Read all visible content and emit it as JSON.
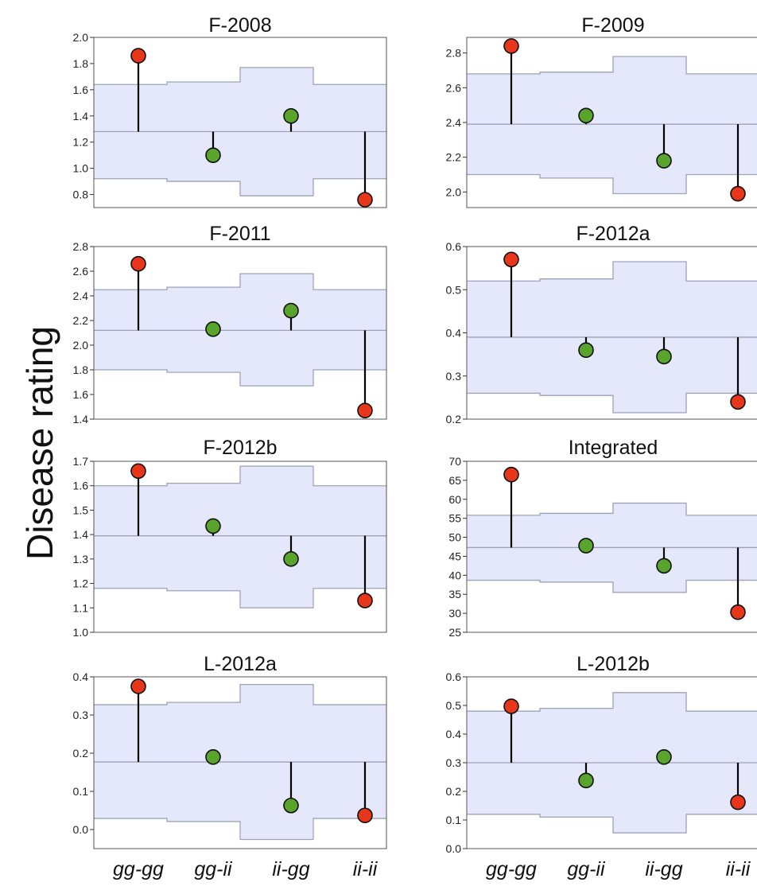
{
  "ylabel": "Disease rating",
  "x_categories": [
    "gg-gg",
    "gg-ii",
    "ii-gg",
    "ii-ii"
  ],
  "colors": {
    "red_marker": "#e8361a",
    "green_marker": "#58a42c",
    "band_fill": "#e5e8fa",
    "band_line": "#9ea2b7",
    "stem": "#000000"
  },
  "chart_data": [
    {
      "type": "scatter",
      "title": "F-2008",
      "categories": [
        "gg-gg",
        "gg-ii",
        "ii-gg",
        "ii-ii"
      ],
      "ylim": [
        0.7,
        2.0
      ],
      "yticks": [
        0.8,
        1.0,
        1.2,
        1.4,
        1.6,
        1.8,
        2.0
      ],
      "tick_labels": [
        "0.8",
        "1.0",
        "1.2",
        "1.4",
        "1.6",
        "1.8",
        "2.0"
      ],
      "mean": 1.28,
      "band_upper": [
        1.64,
        1.66,
        1.77,
        1.64
      ],
      "band_lower": [
        0.92,
        0.9,
        0.79,
        0.92
      ],
      "values": [
        1.86,
        1.1,
        1.4,
        0.76
      ],
      "marker_colors": [
        "red",
        "green",
        "green",
        "red"
      ]
    },
    {
      "type": "scatter",
      "title": "F-2009",
      "categories": [
        "gg-gg",
        "gg-ii",
        "ii-gg",
        "ii-ii"
      ],
      "ylim": [
        1.91,
        2.89
      ],
      "yticks": [
        2.0,
        2.2,
        2.4,
        2.6,
        2.8
      ],
      "tick_labels": [
        "2.0",
        "2.2",
        "2.4",
        "2.6",
        "2.8"
      ],
      "mean": 2.39,
      "band_upper": [
        2.68,
        2.69,
        2.78,
        2.68
      ],
      "band_lower": [
        2.1,
        2.08,
        1.99,
        2.1
      ],
      "values": [
        2.84,
        2.44,
        2.18,
        1.99
      ],
      "marker_colors": [
        "red",
        "green",
        "green",
        "red"
      ]
    },
    {
      "type": "scatter",
      "title": "F-2011",
      "categories": [
        "gg-gg",
        "gg-ii",
        "ii-gg",
        "ii-ii"
      ],
      "ylim": [
        1.4,
        2.8
      ],
      "yticks": [
        1.4,
        1.6,
        1.8,
        2.0,
        2.2,
        2.4,
        2.6,
        2.8
      ],
      "tick_labels": [
        "1.4",
        "1.6",
        "1.8",
        "2.0",
        "2.2",
        "2.4",
        "2.6",
        "2.8"
      ],
      "mean": 2.12,
      "band_upper": [
        2.45,
        2.47,
        2.58,
        2.45
      ],
      "band_lower": [
        1.8,
        1.78,
        1.67,
        1.8
      ],
      "values": [
        2.66,
        2.13,
        2.28,
        1.47
      ],
      "marker_colors": [
        "red",
        "green",
        "green",
        "red"
      ]
    },
    {
      "type": "scatter",
      "title": "F-2012a",
      "categories": [
        "gg-gg",
        "gg-ii",
        "ii-gg",
        "ii-ii"
      ],
      "ylim": [
        0.2,
        0.6
      ],
      "yticks": [
        0.2,
        0.3,
        0.4,
        0.5,
        0.6
      ],
      "tick_labels": [
        "0.2",
        "0.3",
        "0.4",
        "0.5",
        "0.6"
      ],
      "mean": 0.39,
      "band_upper": [
        0.52,
        0.525,
        0.565,
        0.52
      ],
      "band_lower": [
        0.26,
        0.255,
        0.215,
        0.26
      ],
      "values": [
        0.57,
        0.36,
        0.345,
        0.24
      ],
      "marker_colors": [
        "red",
        "green",
        "green",
        "red"
      ]
    },
    {
      "type": "scatter",
      "title": "F-2012b",
      "categories": [
        "gg-gg",
        "gg-ii",
        "ii-gg",
        "ii-ii"
      ],
      "ylim": [
        1.0,
        1.7
      ],
      "yticks": [
        1.0,
        1.1,
        1.2,
        1.3,
        1.4,
        1.5,
        1.6,
        1.7
      ],
      "tick_labels": [
        "1.0",
        "1.1",
        "1.2",
        "1.3",
        "1.4",
        "1.5",
        "1.6",
        "1.7"
      ],
      "mean": 1.395,
      "band_upper": [
        1.6,
        1.61,
        1.68,
        1.6
      ],
      "band_lower": [
        1.18,
        1.17,
        1.1,
        1.18
      ],
      "values": [
        1.66,
        1.435,
        1.3,
        1.13
      ],
      "marker_colors": [
        "red",
        "green",
        "green",
        "red"
      ]
    },
    {
      "type": "scatter",
      "title": "Integrated",
      "categories": [
        "gg-gg",
        "gg-ii",
        "ii-gg",
        "ii-ii"
      ],
      "ylim": [
        25,
        70
      ],
      "yticks": [
        25,
        30,
        35,
        40,
        45,
        50,
        55,
        60,
        65,
        70
      ],
      "tick_labels": [
        "25",
        "30",
        "35",
        "40",
        "45",
        "50",
        "55",
        "60",
        "65",
        "70"
      ],
      "mean": 47.3,
      "band_upper": [
        55.8,
        56.3,
        59.0,
        55.8
      ],
      "band_lower": [
        38.7,
        38.2,
        35.5,
        38.7
      ],
      "values": [
        66.5,
        47.8,
        42.5,
        30.3
      ],
      "marker_colors": [
        "red",
        "green",
        "green",
        "red"
      ]
    },
    {
      "type": "scatter",
      "title": "L-2012a",
      "categories": [
        "gg-gg",
        "gg-ii",
        "ii-gg",
        "ii-ii"
      ],
      "ylim": [
        -0.05,
        0.4
      ],
      "yticks": [
        0.0,
        0.1,
        0.2,
        0.3,
        0.4
      ],
      "tick_labels": [
        "0.0",
        "0.1",
        "0.2",
        "0.3",
        "0.4"
      ],
      "mean": 0.177,
      "band_upper": [
        0.327,
        0.333,
        0.38,
        0.327
      ],
      "band_lower": [
        0.029,
        0.021,
        -0.026,
        0.029
      ],
      "values": [
        0.375,
        0.19,
        0.063,
        0.037
      ],
      "marker_colors": [
        "red",
        "green",
        "green",
        "red"
      ]
    },
    {
      "type": "scatter",
      "title": "L-2012b",
      "categories": [
        "gg-gg",
        "gg-ii",
        "ii-gg",
        "ii-ii"
      ],
      "ylim": [
        0.0,
        0.6
      ],
      "yticks": [
        0.0,
        0.1,
        0.2,
        0.3,
        0.4,
        0.5,
        0.6
      ],
      "tick_labels": [
        "0.0",
        "0.1",
        "0.2",
        "0.3",
        "0.4",
        "0.5",
        "0.6"
      ],
      "mean": 0.3,
      "band_upper": [
        0.48,
        0.49,
        0.545,
        0.48
      ],
      "band_lower": [
        0.12,
        0.11,
        0.055,
        0.12
      ],
      "values": [
        0.497,
        0.238,
        0.32,
        0.162
      ],
      "marker_colors": [
        "red",
        "green",
        "green",
        "red"
      ]
    }
  ]
}
